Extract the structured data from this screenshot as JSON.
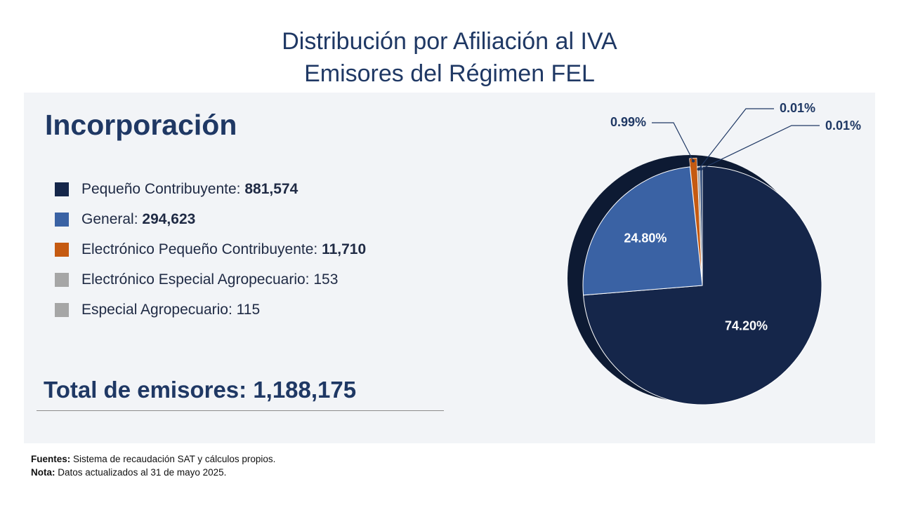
{
  "title": {
    "line1": "Distribución  por Afiliación  al IVA",
    "line2": "Emisores del Régimen  FEL"
  },
  "section_heading": "Incorporación",
  "legend": [
    {
      "label": "Pequeño Contribuyente: ",
      "value": "881,574",
      "color": "#15264a",
      "bold": true
    },
    {
      "label": "General: ",
      "value": "294,623",
      "color": "#3a62a4",
      "bold": true
    },
    {
      "label": "Electrónico Pequeño Contribuyente: ",
      "value": "11,710",
      "color": "#c55a11",
      "bold": true
    },
    {
      "label": "Electrónico Especial Agropecuario: ",
      "value": "153",
      "color": "#a6a6a6",
      "bold": false
    },
    {
      "label": "Especial Agropecuario: ",
      "value": "115",
      "color": "#a6a6a6",
      "bold": false
    }
  ],
  "total": {
    "label": "Total de emisores: ",
    "value": "1,188,175"
  },
  "footnotes": {
    "sources_label": "Fuentes:",
    "sources_text": " Sistema de recaudación SAT y cálculos propios.",
    "note_label": "Nota:",
    "note_text": " Datos actualizados al 31 de mayo 2025."
  },
  "chart_data": {
    "type": "pie",
    "slices": [
      {
        "category": "Pequeño Contribuyente",
        "value": 74.2,
        "label": "74.20%",
        "color": "#15264a"
      },
      {
        "category": "General",
        "value": 24.8,
        "label": "24.80%",
        "color": "#3a62a4"
      },
      {
        "category": "Electrónico Pequeño Contribuyente",
        "value": 0.99,
        "label": "0.99%",
        "color": "#c55a11"
      },
      {
        "category": "Electrónico Especial Agropecuario",
        "value": 0.01,
        "label": "0.01%",
        "color": "#a6a6a6"
      },
      {
        "category": "Especial Agropecuario",
        "value": 0.01,
        "label": "0.01%",
        "color": "#2f4a78"
      }
    ]
  }
}
